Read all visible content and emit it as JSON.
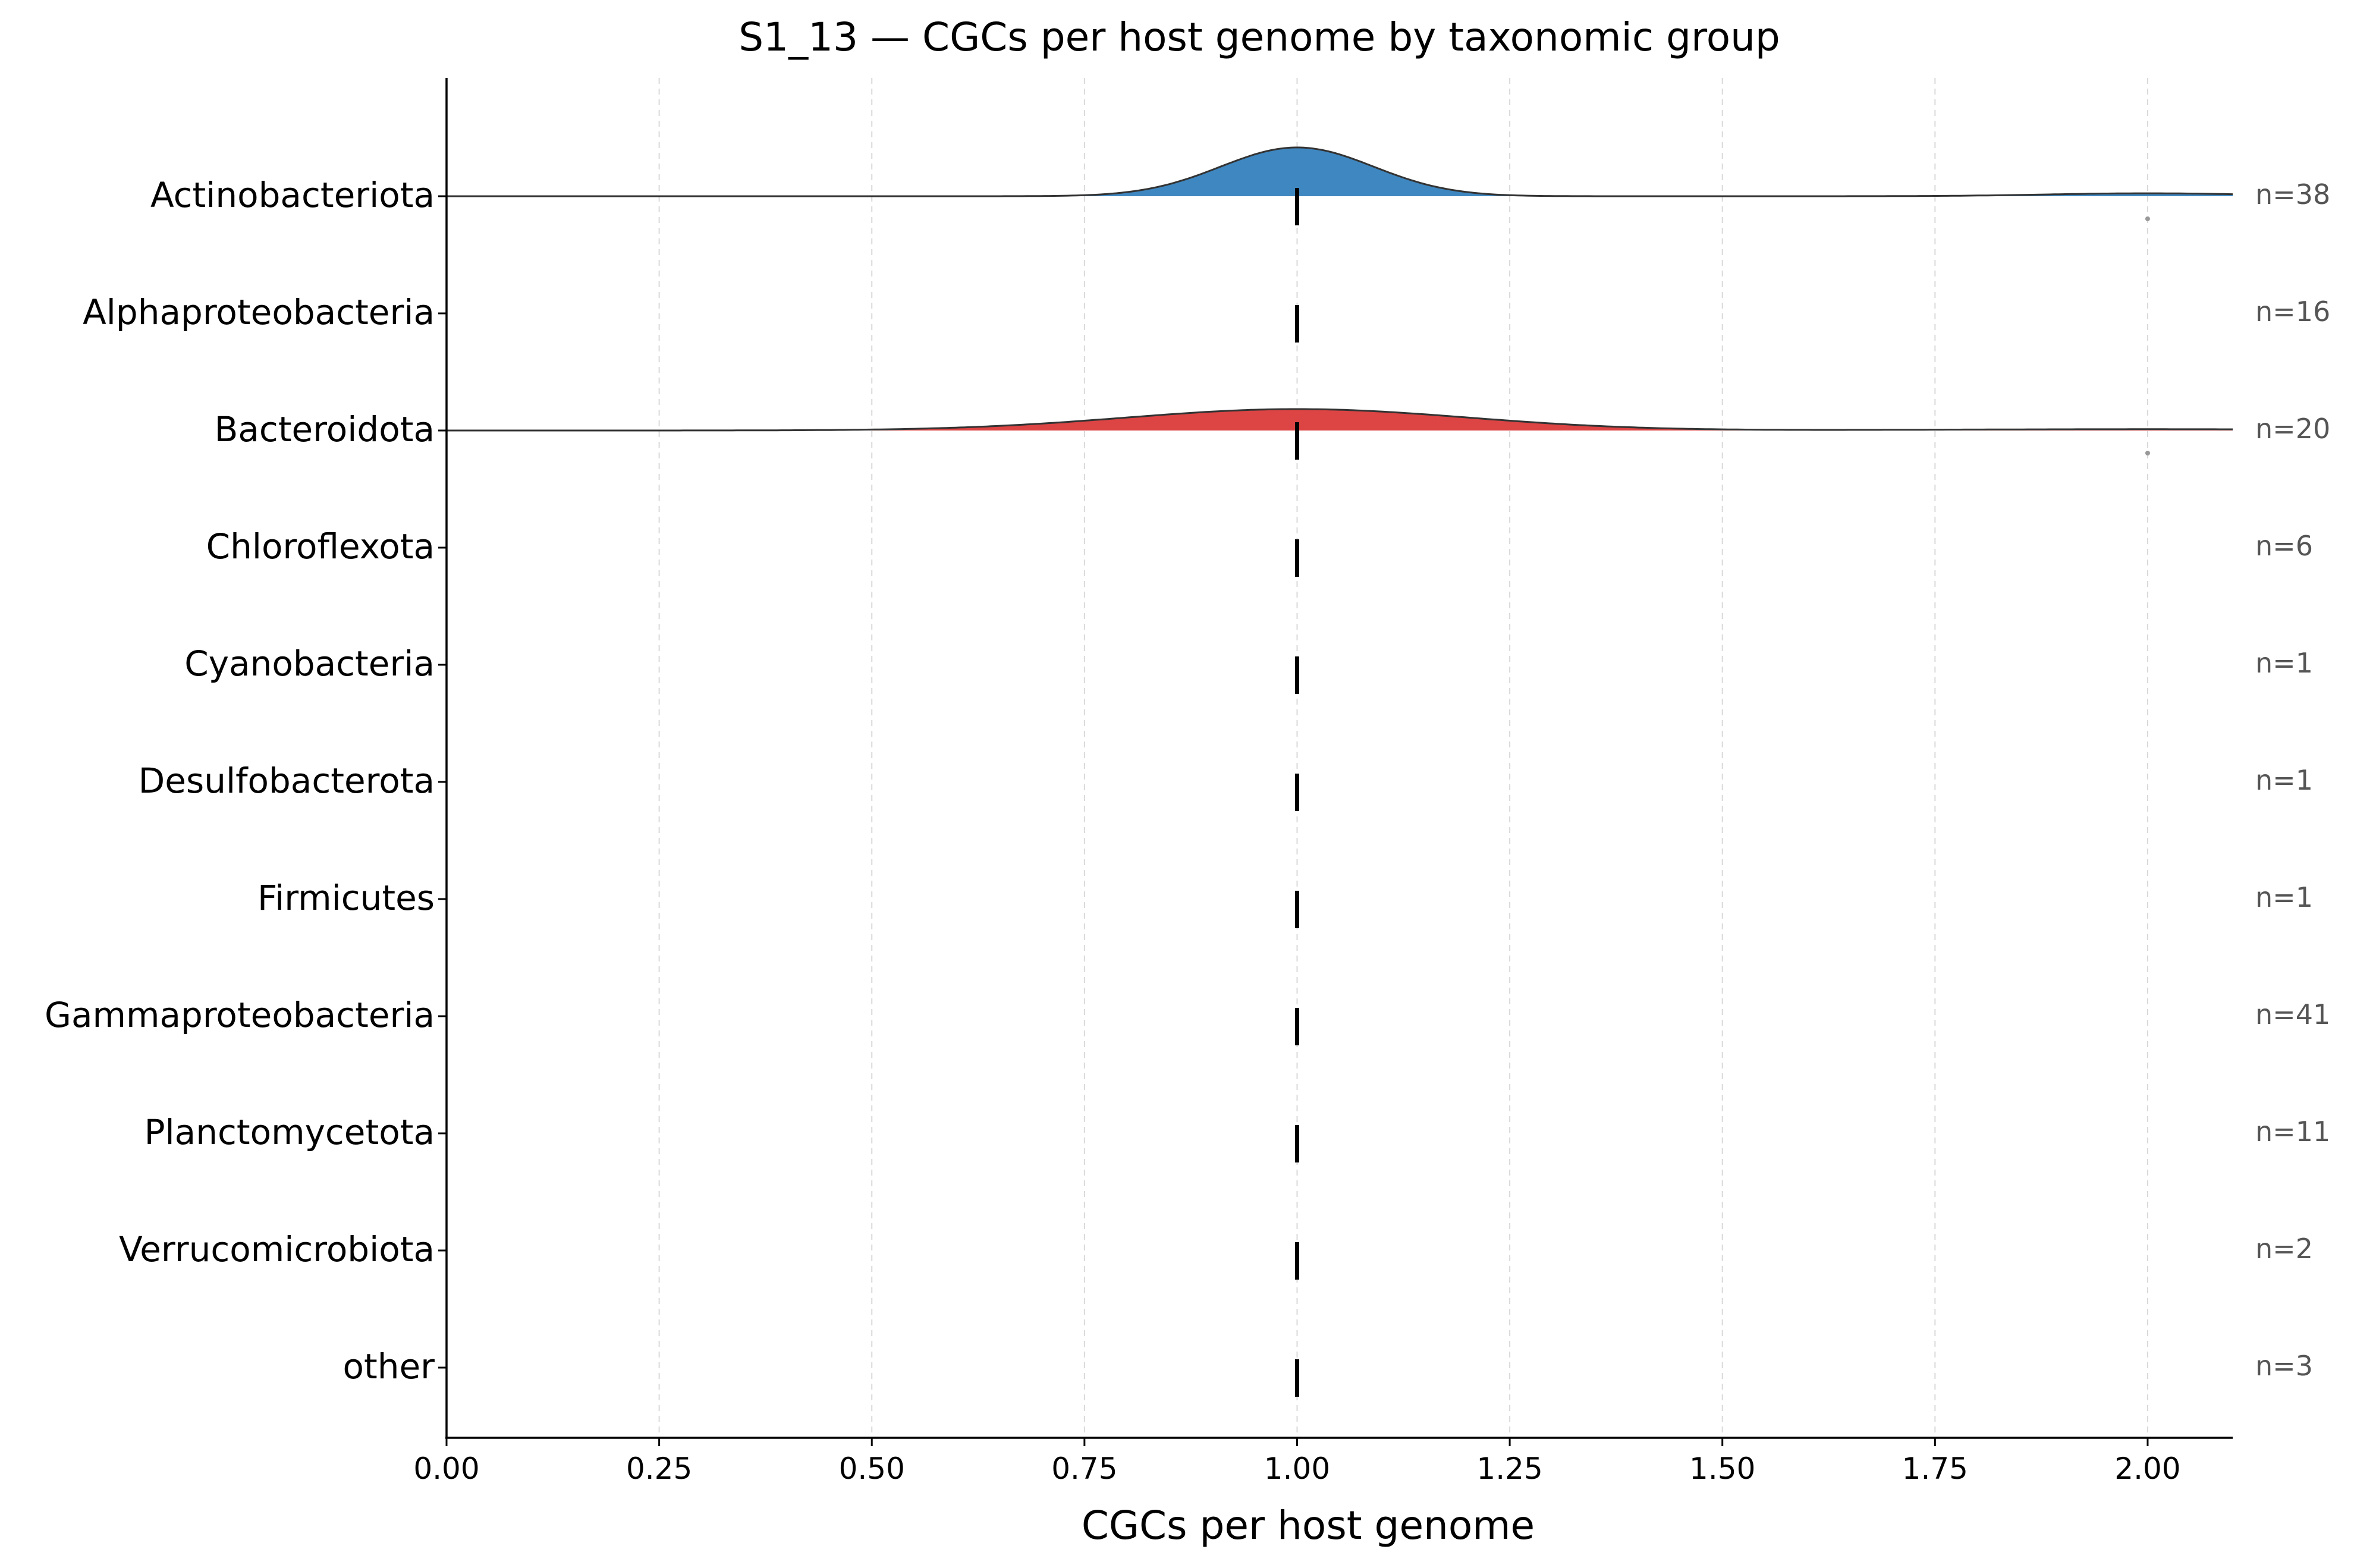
{
  "chart_data": {
    "type": "ridgeline",
    "title": "S1_13 — CGCs per host genome by taxonomic group",
    "xlabel": "CGCs per host genome",
    "ylabel": "",
    "xlim": [
      0.0,
      2.1
    ],
    "x_ticks": [
      0.0,
      0.25,
      0.5,
      0.75,
      1.0,
      1.25,
      1.5,
      1.75,
      2.0
    ],
    "x_tick_labels": [
      "0.00",
      "0.25",
      "0.50",
      "0.75",
      "1.00",
      "1.25",
      "1.50",
      "1.75",
      "2.00"
    ],
    "grid": "vertical dashed",
    "groups": [
      {
        "name": "Actinobacteriota",
        "n_label": "n=38",
        "median": 1.0,
        "density": true,
        "color": "#3f87c0",
        "peak": 1.0,
        "width": 0.09,
        "tail_at": 2.0,
        "outliers": [
          2.0
        ]
      },
      {
        "name": "Alphaproteobacteria",
        "n_label": "n=16",
        "median": 1.0,
        "density": false
      },
      {
        "name": "Bacteroidota",
        "n_label": "n=20",
        "median": 1.0,
        "density": true,
        "color": "#dd4444",
        "peak": 1.0,
        "width": 0.2,
        "tail_at": 2.0,
        "outliers": [
          2.0
        ]
      },
      {
        "name": "Chloroflexota",
        "n_label": "n=6",
        "median": 1.0,
        "density": false
      },
      {
        "name": "Cyanobacteria",
        "n_label": "n=1",
        "median": 1.0,
        "density": false
      },
      {
        "name": "Desulfobacterota",
        "n_label": "n=1",
        "median": 1.0,
        "density": false
      },
      {
        "name": "Firmicutes",
        "n_label": "n=1",
        "median": 1.0,
        "density": false
      },
      {
        "name": "Gammaproteobacteria",
        "n_label": "n=41",
        "median": 1.0,
        "density": false
      },
      {
        "name": "Planctomycetota",
        "n_label": "n=11",
        "median": 1.0,
        "density": false
      },
      {
        "name": "Verrucomicrobiota",
        "n_label": "n=2",
        "median": 1.0,
        "density": false
      },
      {
        "name": "other",
        "n_label": "n=3",
        "median": 1.0,
        "density": false
      }
    ]
  }
}
